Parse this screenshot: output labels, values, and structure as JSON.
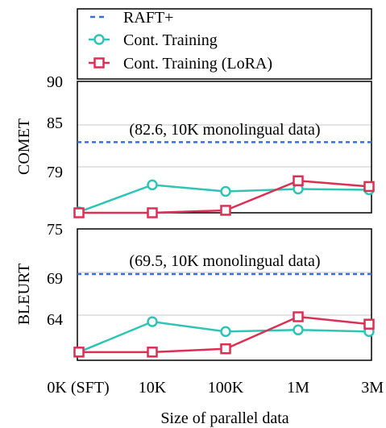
{
  "legend": {
    "items": [
      {
        "label": "RAFT+",
        "color": "#3b6fd8",
        "style": "dashed",
        "marker": "none"
      },
      {
        "label": "Cont. Training",
        "color": "#2ec4b6",
        "style": "solid",
        "marker": "circle"
      },
      {
        "label": "Cont. Training (LoRA)",
        "color": "#dc2f54",
        "style": "solid",
        "marker": "square"
      }
    ],
    "placement": "top"
  },
  "chart_data": [
    {
      "type": "line",
      "ylabel": "COMET",
      "xlabel": "Size of parallel data",
      "categories": [
        "0K (SFT)",
        "10K",
        "100K",
        "1M",
        "3M"
      ],
      "ylim": [
        74,
        90
      ],
      "yticks": [
        79,
        85,
        90
      ],
      "grid": true,
      "reference": {
        "series": "RAFT+",
        "value": 82.6,
        "annotation": "(82.6, 10K monolingual data)"
      },
      "series": [
        {
          "name": "Cont. Training",
          "values": [
            74.1,
            77.4,
            76.6,
            76.9,
            76.8
          ]
        },
        {
          "name": "Cont. Training (LoRA)",
          "values": [
            74.0,
            74.0,
            74.3,
            77.9,
            77.2
          ]
        }
      ]
    },
    {
      "type": "line",
      "ylabel": "BLEURT",
      "xlabel": "Size of parallel data",
      "categories": [
        "0K (SFT)",
        "10K",
        "100K",
        "1M",
        "3M"
      ],
      "ylim": [
        59,
        75
      ],
      "yticks": [
        64,
        69,
        75
      ],
      "grid": true,
      "reference": {
        "series": "RAFT+",
        "value": 69.5,
        "annotation": "(69.5, 10K monolingual data)"
      },
      "series": [
        {
          "name": "Cont. Training",
          "values": [
            60.0,
            63.7,
            62.5,
            62.7,
            62.5
          ]
        },
        {
          "name": "Cont. Training (LoRA)",
          "values": [
            60.0,
            60.0,
            60.4,
            64.3,
            63.4
          ]
        }
      ]
    }
  ]
}
